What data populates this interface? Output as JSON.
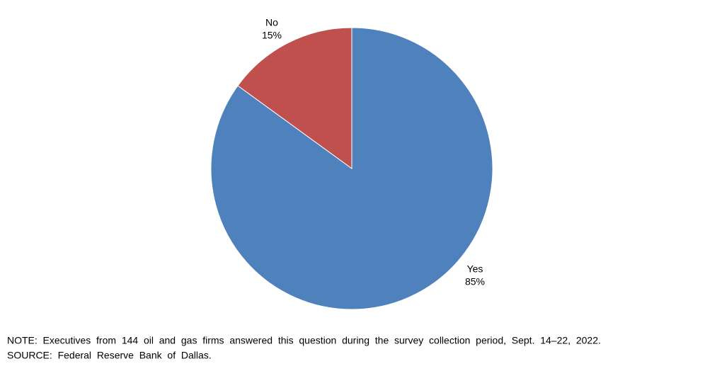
{
  "chart_data": {
    "type": "pie",
    "categories": [
      "Yes",
      "No"
    ],
    "values": [
      85,
      15
    ],
    "value_labels": [
      "85%",
      "15%"
    ],
    "colors": [
      "#4f81bd",
      "#c0504d"
    ],
    "note": "NOTE:  Executives  from  144  oil  and  gas  firms  answered  this  question  during  the  survey  collection  period,  Sept.  14–22,  2022.",
    "source": "SOURCE:  Federal  Reserve  Bank  of  Dallas."
  }
}
